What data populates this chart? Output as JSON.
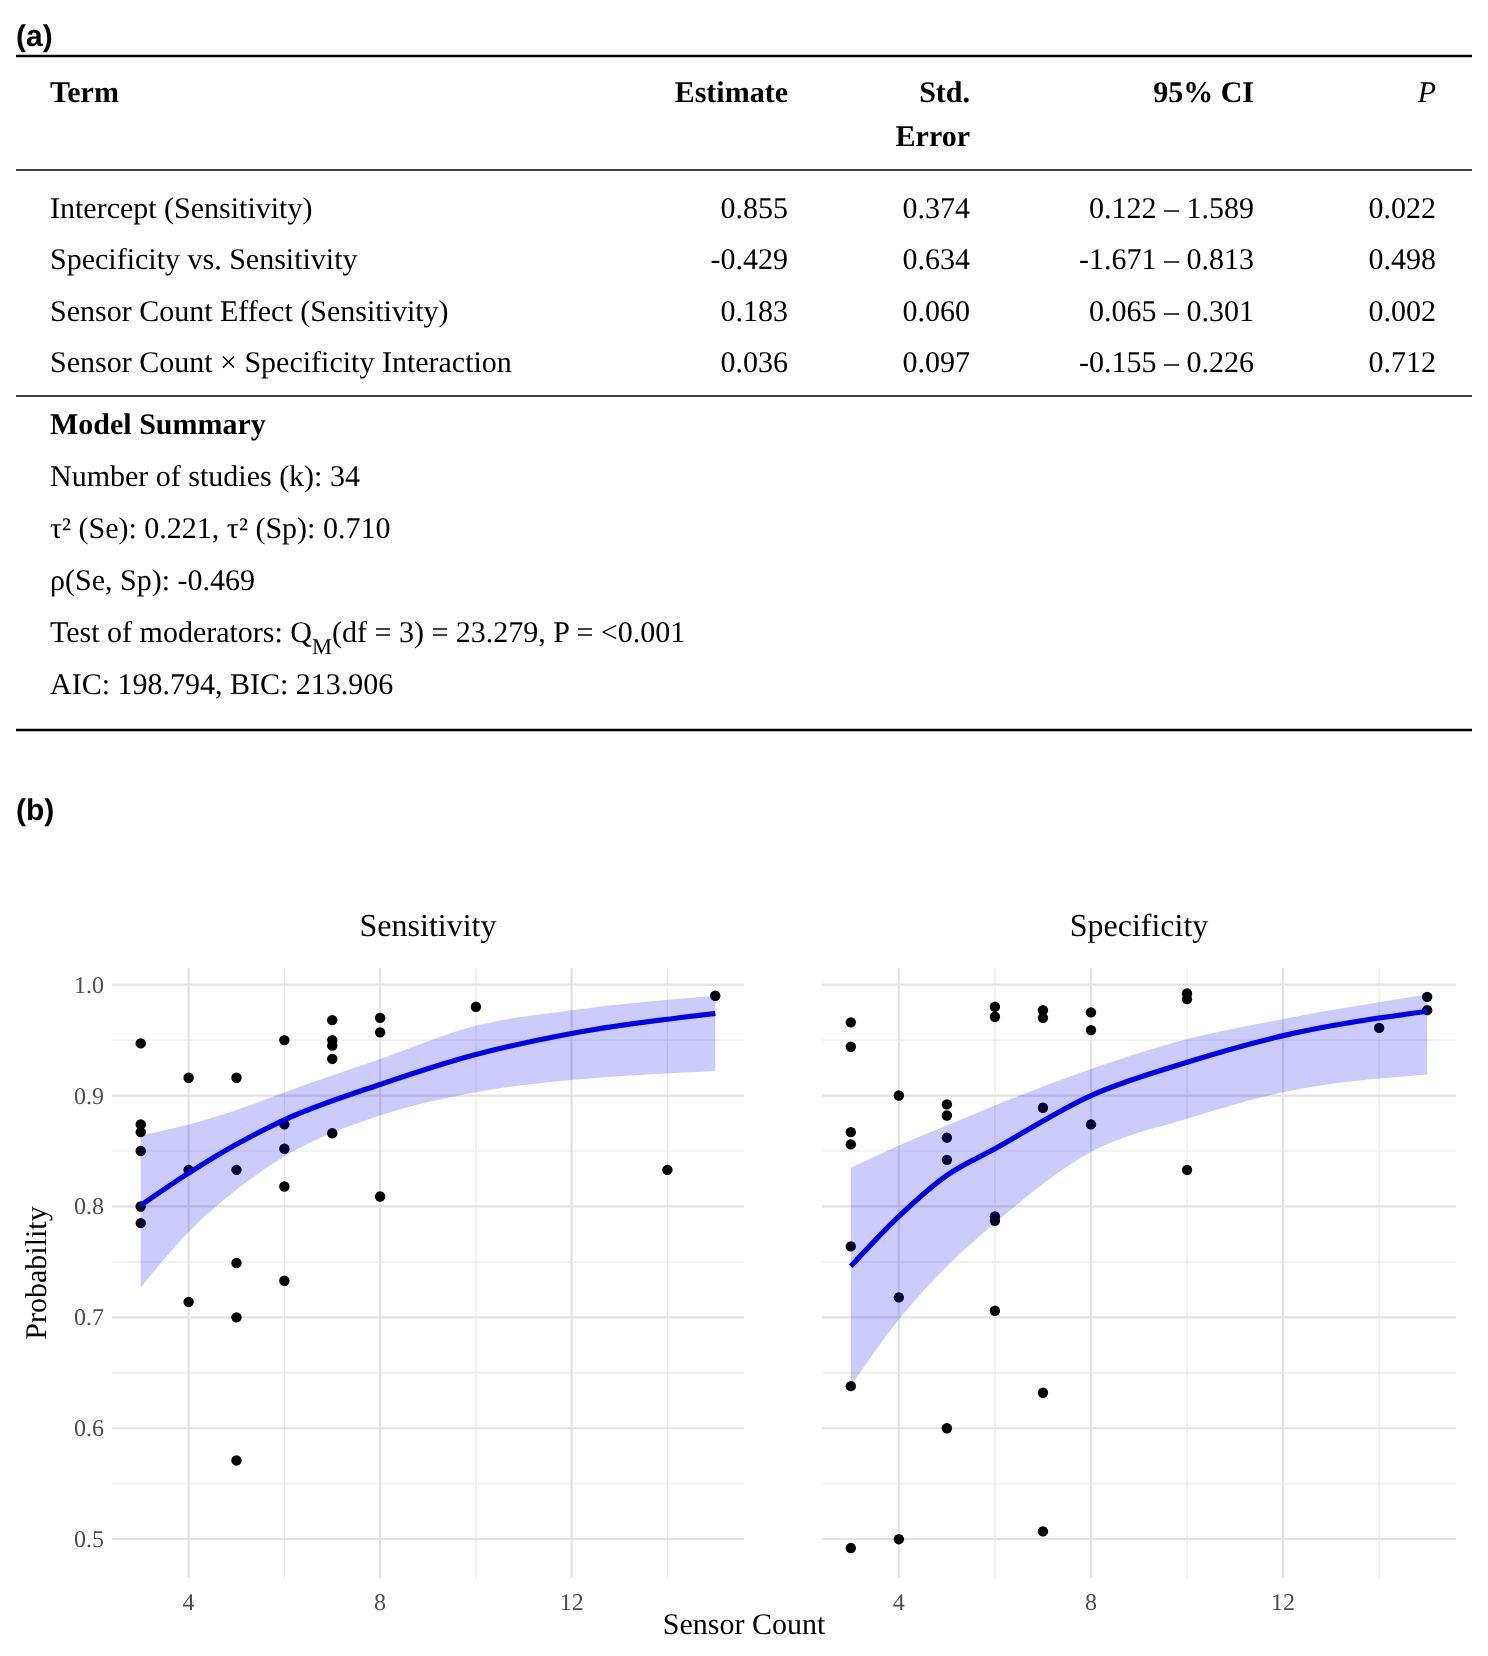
{
  "chart_data": [
    {
      "type": "other",
      "title": "(a)",
      "categories": [
        "Term",
        "Estimate",
        "Std. Error",
        "95% CI",
        "P"
      ],
      "y_categories": [
        "Intercept (Sensitivity)",
        "Specificity vs. Sensitivity",
        "Sensor Count Effect (Sensitivity)",
        "Sensor Count × Specificity Interaction"
      ],
      "cell_labels": [
        [
          "0.855",
          "0.374",
          "0.122 – 1.589",
          "0.022"
        ],
        [
          "-0.429",
          "0.634",
          "-1.671 – 0.813",
          "0.498"
        ],
        [
          "0.183",
          "0.060",
          "0.065 – 0.301",
          "0.002"
        ],
        [
          "0.036",
          "0.097",
          "-0.155 – 0.226",
          "0.712"
        ]
      ],
      "subtitle": "Model Summary",
      "annotations": [
        "Number of studies (k): 34",
        "τ² (Se): 0.221, τ² (Sp): 0.710",
        "ρ(Se, Sp): -0.469",
        "Test of moderators: Q$_{M}$(df = 3) = 23.279, P = <0.001",
        "AIC: 198.794, BIC: 213.906"
      ]
    },
    {
      "type": "scatter",
      "title": "Sensitivity",
      "annotations": [
        "(b)"
      ],
      "xlabel": "Sensor Count",
      "ylabel": "Probability",
      "grid": true,
      "xlim": [
        2.4,
        15.6
      ],
      "xticks": [
        4,
        8,
        12
      ],
      "ylim": [
        0.465,
        1.015
      ],
      "yticks": [
        {
          "value": 0.5,
          "label": "0.5"
        },
        {
          "value": 0.6,
          "label": "0.6"
        },
        {
          "value": 0.7,
          "label": "0.7"
        },
        {
          "value": 0.8,
          "label": "0.8"
        },
        {
          "value": 0.9,
          "label": "0.9"
        },
        {
          "value": 1,
          "label": "1.0"
        }
      ],
      "series": [
        {
          "type": "scatter",
          "color": "#000000",
          "marker": "circle",
          "x": [
            3,
            3,
            3,
            3,
            3,
            3,
            4,
            4,
            4,
            5,
            5,
            5,
            5,
            5,
            6,
            6,
            6,
            6,
            6,
            7,
            7,
            7,
            7,
            7,
            8,
            8,
            8,
            10,
            14,
            15
          ],
          "values": [
            0.947,
            0.874,
            0.867,
            0.85,
            0.8,
            0.785,
            0.916,
            0.833,
            0.714,
            0.916,
            0.833,
            0.749,
            0.7,
            0.571,
            0.95,
            0.874,
            0.852,
            0.818,
            0.733,
            0.968,
            0.95,
            0.945,
            0.933,
            0.866,
            0.97,
            0.957,
            0.809,
            0.98,
            0.833,
            0.99
          ]
        },
        {
          "type": "line",
          "color": "#0000ee",
          "x": [
            3,
            4,
            5,
            6,
            8,
            10,
            12,
            15
          ],
          "values": [
            0.801,
            0.83,
            0.856,
            0.878,
            0.91,
            0.937,
            0.956,
            0.974
          ],
          "lower": [
            0.727,
            0.777,
            0.815,
            0.845,
            0.882,
            0.903,
            0.914,
            0.922
          ],
          "upper": [
            0.864,
            0.874,
            0.887,
            0.903,
            0.933,
            0.963,
            0.977,
            0.99
          ]
        }
      ]
    },
    {
      "type": "scatter",
      "title": "Specificity",
      "grid": true,
      "tick_labels": "x",
      "xlim": [
        2.4,
        15.6
      ],
      "xticks": [
        4,
        8,
        12
      ],
      "ylim": [
        0.465,
        1.015
      ],
      "yticks": [
        0.5,
        0.6,
        0.7,
        0.8,
        0.9,
        1
      ],
      "series": [
        {
          "type": "scatter",
          "color": "#000000",
          "marker": "circle",
          "x": [
            3,
            3,
            3,
            3,
            3,
            3,
            3,
            4,
            4,
            4,
            5,
            5,
            5,
            5,
            5,
            6,
            6,
            6,
            6,
            6,
            7,
            7,
            7,
            7,
            7,
            8,
            8,
            8,
            10,
            10,
            10,
            14,
            15,
            15
          ],
          "values": [
            0.966,
            0.944,
            0.867,
            0.856,
            0.764,
            0.638,
            0.492,
            0.9,
            0.718,
            0.5,
            0.892,
            0.882,
            0.862,
            0.842,
            0.6,
            0.98,
            0.971,
            0.791,
            0.787,
            0.706,
            0.977,
            0.97,
            0.889,
            0.632,
            0.507,
            0.975,
            0.959,
            0.874,
            0.992,
            0.987,
            0.833,
            0.961,
            0.989,
            0.977
          ]
        },
        {
          "type": "line",
          "color": "#0000ee",
          "x": [
            3,
            4,
            5,
            6,
            8,
            10,
            12,
            15
          ],
          "values": [
            0.746,
            0.791,
            0.828,
            0.852,
            0.9,
            0.93,
            0.954,
            0.976
          ],
          "lower": [
            0.638,
            0.698,
            0.746,
            0.785,
            0.849,
            0.879,
            0.903,
            0.919
          ],
          "upper": [
            0.835,
            0.855,
            0.873,
            0.891,
            0.924,
            0.951,
            0.969,
            0.991
          ]
        }
      ]
    }
  ]
}
